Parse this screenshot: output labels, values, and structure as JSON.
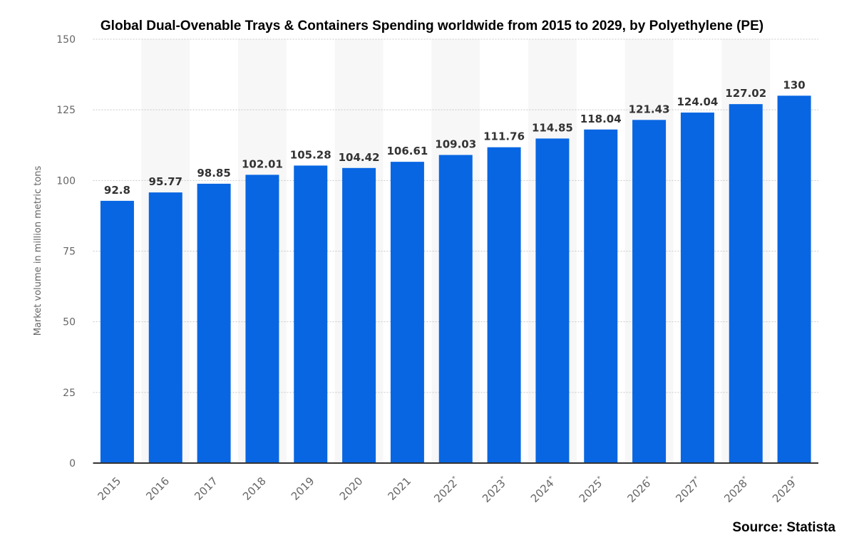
{
  "chart_data": {
    "type": "bar",
    "title": "Global Dual-Ovenable Trays & Containers Spending worldwide from 2015 to 2029, by Polyethylene (PE)",
    "source": "Source: Statista",
    "xlabel": "",
    "ylabel": "Market volume in million metric tons",
    "ylim": [
      0,
      150
    ],
    "yticks": [
      0,
      25,
      50,
      75,
      100,
      125,
      150
    ],
    "grid": true,
    "categories": [
      "2015",
      "2016",
      "2017",
      "2018",
      "2019",
      "2020",
      "2021",
      "2022*",
      "2023*",
      "2024*",
      "2025*",
      "2026*",
      "2027*",
      "2028*",
      "2029*"
    ],
    "values": [
      92.8,
      95.77,
      98.85,
      102.01,
      105.28,
      104.42,
      106.61,
      109.03,
      111.76,
      114.85,
      118.04,
      121.43,
      124.04,
      127.02,
      130
    ],
    "value_labels": [
      "92.8",
      "95.77",
      "98.85",
      "102.01",
      "105.28",
      "104.42",
      "106.61",
      "109.03",
      "111.76",
      "114.85",
      "118.04",
      "121.43",
      "124.04",
      "127.02",
      "130"
    ],
    "colors": {
      "bar": "#0866e2",
      "band": "#f7f7f7",
      "axis": "#333333",
      "tick_text": "#666666",
      "label_text": "#333333"
    }
  }
}
